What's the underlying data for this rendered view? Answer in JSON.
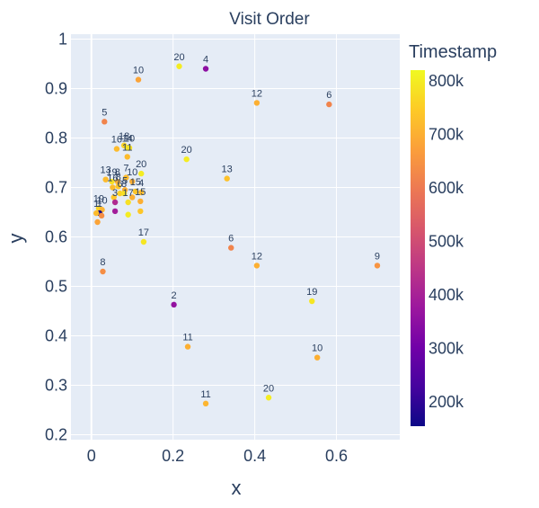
{
  "chart_data": {
    "type": "scatter",
    "title": "Visit Order",
    "xlabel": "x",
    "ylabel": "y",
    "xlim": [
      -0.05,
      0.755
    ],
    "ylim": [
      0.19,
      1.01
    ],
    "xticks": [
      {
        "v": 0,
        "t": "0"
      },
      {
        "v": 0.2,
        "t": "0.2"
      },
      {
        "v": 0.4,
        "t": "0.4"
      },
      {
        "v": 0.6,
        "t": "0.6"
      }
    ],
    "yticks": [
      {
        "v": 0.2,
        "t": "0.2"
      },
      {
        "v": 0.3,
        "t": "0.3"
      },
      {
        "v": 0.4,
        "t": "0.4"
      },
      {
        "v": 0.5,
        "t": "0.5"
      },
      {
        "v": 0.6,
        "t": "0.6"
      },
      {
        "v": 0.7,
        "t": "0.7"
      },
      {
        "v": 0.8,
        "t": "0.8"
      },
      {
        "v": 0.9,
        "t": "0.9"
      },
      {
        "v": 1,
        "t": "1"
      }
    ],
    "grid": true,
    "colorbar": {
      "title": "Timestamp",
      "min": 155000,
      "max": 820000,
      "ticks": [
        {
          "v": 200000,
          "t": "200k"
        },
        {
          "v": 300000,
          "t": "300k"
        },
        {
          "v": 400000,
          "t": "400k"
        },
        {
          "v": 500000,
          "t": "500k"
        },
        {
          "v": 600000,
          "t": "600k"
        },
        {
          "v": 700000,
          "t": "700k"
        },
        {
          "v": 800000,
          "t": "800k"
        }
      ],
      "colorscale": [
        "#0d0887",
        "#46039f",
        "#7201a8",
        "#9c179e",
        "#bd3786",
        "#d8576b",
        "#ed7953",
        "#fb9f3a",
        "#fdca26",
        "#f0f921"
      ]
    },
    "points": [
      {
        "x": 0.215,
        "y": 0.945,
        "label": "20",
        "c": 800000
      },
      {
        "x": 0.28,
        "y": 0.94,
        "label": "4",
        "c": 350000
      },
      {
        "x": 0.115,
        "y": 0.918,
        "label": "10",
        "c": 680000
      },
      {
        "x": 0.405,
        "y": 0.871,
        "label": "12",
        "c": 700000
      },
      {
        "x": 0.582,
        "y": 0.868,
        "label": "6",
        "c": 620000
      },
      {
        "x": 0.032,
        "y": 0.833,
        "label": "5",
        "c": 620000
      },
      {
        "x": 0.08,
        "y": 0.785,
        "label": "18",
        "c": 760000
      },
      {
        "x": 0.062,
        "y": 0.778,
        "label": "16",
        "c": 720000
      },
      {
        "x": 0.088,
        "y": 0.78,
        "label": "14",
        "c": 790000
      },
      {
        "x": 0.093,
        "y": 0.78,
        "label": "10",
        "c": 780000
      },
      {
        "x": 0.233,
        "y": 0.757,
        "label": "20",
        "c": 800000
      },
      {
        "x": 0.088,
        "y": 0.762,
        "label": "11",
        "c": 720000
      },
      {
        "x": 0.122,
        "y": 0.728,
        "label": "20",
        "c": 800000
      },
      {
        "x": 0.035,
        "y": 0.716,
        "label": "13",
        "c": 720000
      },
      {
        "x": 0.085,
        "y": 0.72,
        "label": "7",
        "c": 720000
      },
      {
        "x": 0.332,
        "y": 0.718,
        "label": "13",
        "c": 730000
      },
      {
        "x": 0.05,
        "y": 0.712,
        "label": "19",
        "c": 780000
      },
      {
        "x": 0.064,
        "y": 0.712,
        "label": "8",
        "c": 700000
      },
      {
        "x": 0.1,
        "y": 0.712,
        "label": "10",
        "c": 700000
      },
      {
        "x": 0.052,
        "y": 0.7,
        "label": "16",
        "c": 720000
      },
      {
        "x": 0.066,
        "y": 0.702,
        "label": "8",
        "c": 740000
      },
      {
        "x": 0.082,
        "y": 0.695,
        "label": "5",
        "c": 700000
      },
      {
        "x": 0.108,
        "y": 0.692,
        "label": "15",
        "c": 740000
      },
      {
        "x": 0.122,
        "y": 0.69,
        "label": "4",
        "c": 720000
      },
      {
        "x": 0.07,
        "y": 0.688,
        "label": "6",
        "c": 760000
      },
      {
        "x": 0.08,
        "y": 0.688,
        "label": "8",
        "c": 780000
      },
      {
        "x": 0.055,
        "y": 0.68,
        "label": "",
        "c": 740000
      },
      {
        "x": 0.1,
        "y": 0.68,
        "label": "",
        "c": 700000
      },
      {
        "x": 0.12,
        "y": 0.672,
        "label": "15",
        "c": 700000
      },
      {
        "x": 0.058,
        "y": 0.67,
        "label": "3",
        "c": 420000
      },
      {
        "x": 0.09,
        "y": 0.67,
        "label": "17",
        "c": 780000
      },
      {
        "x": 0.018,
        "y": 0.658,
        "label": "19",
        "c": 760000
      },
      {
        "x": 0.026,
        "y": 0.655,
        "label": "10",
        "c": 710000
      },
      {
        "x": 0.02,
        "y": 0.648,
        "label": "1",
        "c": 160000
      },
      {
        "x": 0.012,
        "y": 0.648,
        "label": "1",
        "c": 720000
      },
      {
        "x": 0.025,
        "y": 0.643,
        "label": "",
        "c": 640000
      },
      {
        "x": 0.09,
        "y": 0.645,
        "label": "",
        "c": 800000
      },
      {
        "x": 0.12,
        "y": 0.652,
        "label": "",
        "c": 740000
      },
      {
        "x": 0.058,
        "y": 0.652,
        "label": "",
        "c": 390000
      },
      {
        "x": 0.015,
        "y": 0.63,
        "label": "",
        "c": 680000
      },
      {
        "x": 0.128,
        "y": 0.59,
        "label": "17",
        "c": 790000
      },
      {
        "x": 0.342,
        "y": 0.578,
        "label": "6",
        "c": 620000
      },
      {
        "x": 0.405,
        "y": 0.542,
        "label": "12",
        "c": 700000
      },
      {
        "x": 0.7,
        "y": 0.542,
        "label": "9",
        "c": 650000
      },
      {
        "x": 0.028,
        "y": 0.53,
        "label": "8",
        "c": 640000
      },
      {
        "x": 0.54,
        "y": 0.47,
        "label": "19",
        "c": 790000
      },
      {
        "x": 0.202,
        "y": 0.463,
        "label": "2",
        "c": 360000
      },
      {
        "x": 0.236,
        "y": 0.378,
        "label": "11",
        "c": 700000
      },
      {
        "x": 0.553,
        "y": 0.356,
        "label": "10",
        "c": 700000
      },
      {
        "x": 0.434,
        "y": 0.275,
        "label": "20",
        "c": 800000
      },
      {
        "x": 0.28,
        "y": 0.263,
        "label": "11",
        "c": 710000
      }
    ]
  }
}
